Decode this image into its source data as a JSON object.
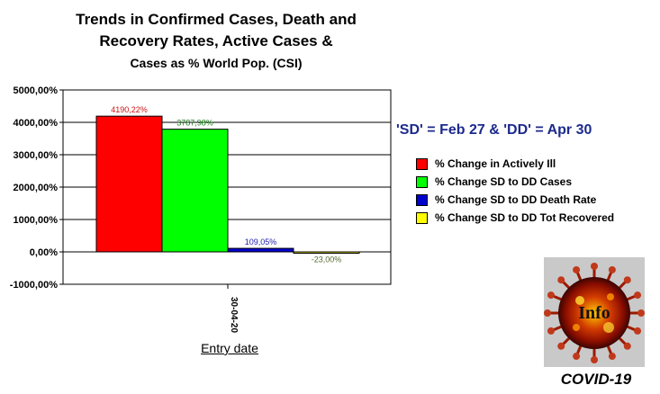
{
  "chart_data": {
    "type": "bar",
    "title_lines": [
      "Trends in Confirmed Cases, Death and",
      "Recovery Rates, Active Cases &",
      "Cases as % World Pop. (CSI)"
    ],
    "categories": [
      "30-04-20"
    ],
    "series": [
      {
        "name": "% Change in Actively Ill",
        "values": [
          4190.22
        ],
        "label": "4190,22%",
        "color": "#ff0000",
        "label_color": "#d01010"
      },
      {
        "name": "% Change SD to DD Cases",
        "values": [
          3787.98
        ],
        "label": "3787,98%",
        "color": "#00ff00",
        "label_color": "#208020"
      },
      {
        "name": "% Change SD to DD Death Rate",
        "values": [
          109.05
        ],
        "label": "109,05%",
        "color": "#0000cc",
        "label_color": "#2020b0"
      },
      {
        "name": "% Change SD to DD Tot Recovered",
        "values": [
          -23.0
        ],
        "label": "-23,00%",
        "color": "#ffff00",
        "label_color": "#556b2f"
      }
    ],
    "ylim": [
      -1000,
      5000
    ],
    "yticks": [
      5000,
      4000,
      3000,
      2000,
      1000,
      0,
      -1000
    ],
    "ytick_labels": [
      "5000,00%",
      "4000,00%",
      "3000,00%",
      "2000,00%",
      "1000,00%",
      "0,00%",
      "-1000,00%"
    ],
    "xlabel": "Entry date",
    "ylabel": "",
    "grid": true,
    "legend_position": "right"
  },
  "note": "'SD' = Feb 27 & 'DD' = Apr 30",
  "logo": {
    "text": "Info",
    "caption": "COVID-19",
    "icon": "virus-icon"
  }
}
